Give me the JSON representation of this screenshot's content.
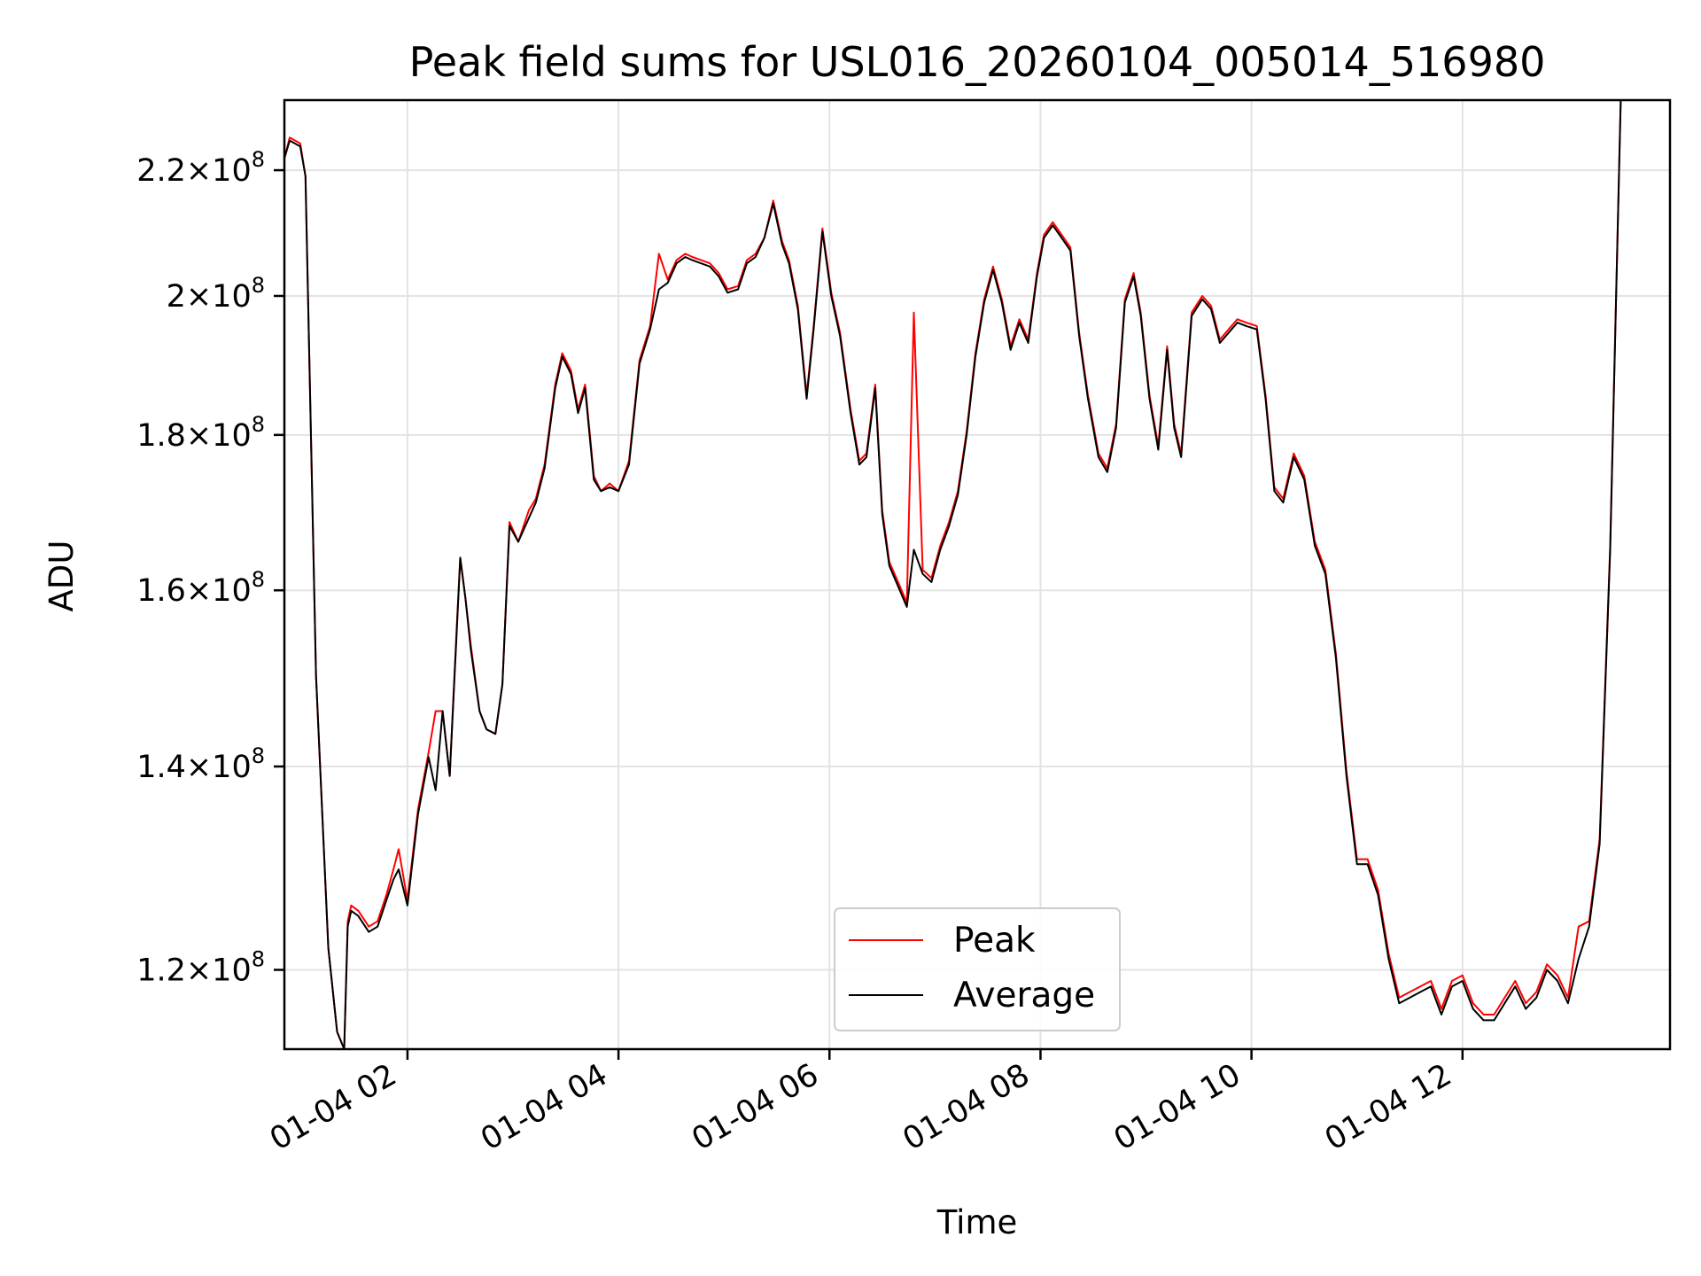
{
  "chart_data": {
    "type": "line",
    "title": "Peak field sums for USL016_20260104_005014_516980",
    "xlabel": "Time",
    "ylabel": "ADU",
    "y_scale": "log",
    "ylim": [
      113000000,
      232000000
    ],
    "xlim": [
      "2026-01-04 00:50",
      "2026-01-04 13:58"
    ],
    "x_ticks": [
      {
        "label": "01-04 02",
        "time": "2026-01-04 02:00"
      },
      {
        "label": "01-04 04",
        "time": "2026-01-04 04:00"
      },
      {
        "label": "01-04 06",
        "time": "2026-01-04 06:00"
      },
      {
        "label": "01-04 08",
        "time": "2026-01-04 08:00"
      },
      {
        "label": "01-04 10",
        "time": "2026-01-04 10:00"
      },
      {
        "label": "01-04 12",
        "time": "2026-01-04 12:00"
      }
    ],
    "y_ticks": [
      {
        "mantissa": "1.2",
        "exp": "8",
        "value": 120000000
      },
      {
        "mantissa": "1.4",
        "exp": "8",
        "value": 140000000
      },
      {
        "mantissa": "1.6",
        "exp": "8",
        "value": 160000000
      },
      {
        "mantissa": "1.8",
        "exp": "8",
        "value": 180000000
      },
      {
        "mantissa": "2",
        "exp": "8",
        "value": 200000000
      },
      {
        "mantissa": "2.2",
        "exp": "8",
        "value": 220000000
      }
    ],
    "times_sep": " | ",
    "x": [
      "2026-01-04 00:50",
      "2026-01-04 00:53",
      "2026-01-04 00:59",
      "2026-01-04 01:02",
      "2026-01-04 01:08",
      "2026-01-04 01:15",
      "2026-01-04 01:20",
      "2026-01-04 01:24",
      "2026-01-04 01:26",
      "2026-01-04 01:28",
      "2026-01-04 01:32",
      "2026-01-04 01:38",
      "2026-01-04 01:43",
      "2026-01-04 01:48",
      "2026-01-04 01:52",
      "2026-01-04 01:55",
      "2026-01-04 02:00",
      "2026-01-04 02:06",
      "2026-01-04 02:12",
      "2026-01-04 02:16",
      "2026-01-04 02:20",
      "2026-01-04 02:24",
      "2026-01-04 02:28",
      "2026-01-04 02:30",
      "2026-01-04 02:33",
      "2026-01-04 02:36",
      "2026-01-04 02:41",
      "2026-01-04 02:45",
      "2026-01-04 02:50",
      "2026-01-04 02:54",
      "2026-01-04 02:58",
      "2026-01-04 03:03",
      "2026-01-04 03:09",
      "2026-01-04 03:13",
      "2026-01-04 03:18",
      "2026-01-04 03:24",
      "2026-01-04 03:28",
      "2026-01-04 03:33",
      "2026-01-04 03:37",
      "2026-01-04 03:41",
      "2026-01-04 03:46",
      "2026-01-04 03:50",
      "2026-01-04 03:55",
      "2026-01-04 04:00",
      "2026-01-04 04:06",
      "2026-01-04 04:12",
      "2026-01-04 04:18",
      "2026-01-04 04:23",
      "2026-01-04 04:28",
      "2026-01-04 04:33",
      "2026-01-04 04:38",
      "2026-01-04 04:42",
      "2026-01-04 04:47",
      "2026-01-04 04:52",
      "2026-01-04 04:57",
      "2026-01-04 05:02",
      "2026-01-04 05:08",
      "2026-01-04 05:13",
      "2026-01-04 05:18",
      "2026-01-04 05:23",
      "2026-01-04 05:28",
      "2026-01-04 05:33",
      "2026-01-04 05:37",
      "2026-01-04 05:42",
      "2026-01-04 05:47",
      "2026-01-04 05:51",
      "2026-01-04 05:56",
      "2026-01-04 06:01",
      "2026-01-04 06:06",
      "2026-01-04 06:12",
      "2026-01-04 06:17",
      "2026-01-04 06:21",
      "2026-01-04 06:26",
      "2026-01-04 06:30",
      "2026-01-04 06:34",
      "2026-01-04 06:39",
      "2026-01-04 06:44",
      "2026-01-04 06:48",
      "2026-01-04 06:53",
      "2026-01-04 06:58",
      "2026-01-04 07:03",
      "2026-01-04 07:08",
      "2026-01-04 07:13",
      "2026-01-04 07:18",
      "2026-01-04 07:23",
      "2026-01-04 07:28",
      "2026-01-04 07:33",
      "2026-01-04 07:38",
      "2026-01-04 07:43",
      "2026-01-04 07:48",
      "2026-01-04 07:53",
      "2026-01-04 07:58",
      "2026-01-04 08:02",
      "2026-01-04 08:07",
      "2026-01-04 08:12",
      "2026-01-04 08:17",
      "2026-01-04 08:22",
      "2026-01-04 08:27",
      "2026-01-04 08:33",
      "2026-01-04 08:38",
      "2026-01-04 08:43",
      "2026-01-04 08:48",
      "2026-01-04 08:53",
      "2026-01-04 08:57",
      "2026-01-04 09:02",
      "2026-01-04 09:07",
      "2026-01-04 09:12",
      "2026-01-04 09:16",
      "2026-01-04 09:20",
      "2026-01-04 09:26",
      "2026-01-04 09:32",
      "2026-01-04 09:37",
      "2026-01-04 09:42",
      "2026-01-04 09:47",
      "2026-01-04 09:52",
      "2026-01-04 09:57",
      "2026-01-04 10:03",
      "2026-01-04 10:08",
      "2026-01-04 10:13",
      "2026-01-04 10:18",
      "2026-01-04 10:24",
      "2026-01-04 10:30",
      "2026-01-04 10:36",
      "2026-01-04 10:42",
      "2026-01-04 10:48",
      "2026-01-04 10:54",
      "2026-01-04 11:00",
      "2026-01-04 11:06",
      "2026-01-04 11:12",
      "2026-01-04 11:18",
      "2026-01-04 11:24",
      "2026-01-04 11:30",
      "2026-01-04 11:36",
      "2026-01-04 11:42",
      "2026-01-04 11:48",
      "2026-01-04 11:54",
      "2026-01-04 12:00",
      "2026-01-04 12:06",
      "2026-01-04 12:12",
      "2026-01-04 12:18",
      "2026-01-04 12:24",
      "2026-01-04 12:30",
      "2026-01-04 12:36",
      "2026-01-04 12:42",
      "2026-01-04 12:48",
      "2026-01-04 12:54",
      "2026-01-04 13:00",
      "2026-01-04 13:06",
      "2026-01-04 13:12",
      "2026-01-04 13:18",
      "2026-01-04 13:24",
      "2026-01-04 13:30",
      "2026-01-04 13:36",
      "2026-01-04 13:42",
      "2026-01-04 13:48",
      "2026-01-04 13:54",
      "2026-01-04 13:58"
    ],
    "average": [
      222000000,
      225000000,
      224000000,
      219000000,
      150000000,
      122000000,
      114500000,
      113000000,
      124000000,
      125500000,
      125000000,
      123500000,
      124000000,
      126500000,
      128500000,
      129500000,
      126000000,
      135000000,
      141000000,
      137500000,
      146000000,
      139000000,
      155000000,
      164000000,
      159000000,
      153000000,
      146000000,
      144000000,
      143500000,
      149000000,
      168000000,
      166000000,
      169000000,
      171000000,
      175500000,
      186500000,
      191000000,
      188500000,
      183000000,
      186500000,
      174000000,
      172500000,
      173000000,
      172500000,
      176000000,
      190000000,
      195000000,
      201000000,
      202000000,
      205000000,
      206000000,
      205500000,
      205000000,
      204500000,
      203000000,
      200500000,
      201000000,
      205000000,
      206000000,
      209000000,
      214500000,
      208000000,
      205000000,
      198000000,
      185000000,
      195000000,
      210000000,
      200000000,
      194000000,
      183000000,
      176000000,
      177000000,
      186500000,
      169500000,
      163000000,
      160500000,
      158000000,
      165000000,
      162000000,
      161000000,
      165000000,
      168000000,
      172000000,
      180000000,
      191000000,
      199000000,
      204000000,
      199000000,
      192000000,
      196000000,
      193000000,
      203000000,
      209000000,
      211000000,
      209000000,
      207000000,
      194000000,
      185000000,
      177000000,
      175000000,
      181000000,
      199000000,
      203000000,
      197000000,
      185000000,
      178000000,
      192000000,
      181000000,
      177000000,
      197000000,
      199500000,
      198000000,
      193000000,
      194500000,
      196000000,
      195500000,
      195000000,
      185000000,
      172500000,
      171000000,
      177000000,
      174000000,
      165500000,
      162000000,
      152000000,
      139000000,
      130000000,
      130000000,
      127000000,
      121000000,
      117000000,
      117500000,
      118000000,
      118500000,
      116000000,
      118500000,
      119000000,
      116500000,
      115500000,
      115500000,
      117000000,
      118500000,
      116500000,
      117500000,
      120000000,
      119000000,
      117000000,
      121000000,
      124000000,
      132000000,
      165000000,
      232000000
    ],
    "peak": [
      222000000,
      225500000,
      224500000,
      219000000,
      150000000,
      122000000,
      114500000,
      113000000,
      124500000,
      126000000,
      125500000,
      124000000,
      124500000,
      127000000,
      129500000,
      131500000,
      126500000,
      135500000,
      141500000,
      146000000,
      146000000,
      139000000,
      155500000,
      164000000,
      159000000,
      153500000,
      146000000,
      144000000,
      143500000,
      149000000,
      168500000,
      166000000,
      170000000,
      171500000,
      176000000,
      187000000,
      191500000,
      189000000,
      183500000,
      187000000,
      174500000,
      172500000,
      173500000,
      172500000,
      176500000,
      190500000,
      195500000,
      206500000,
      202500000,
      205500000,
      206500000,
      206000000,
      205500000,
      205000000,
      203500000,
      201000000,
      201500000,
      205500000,
      206500000,
      209000000,
      215000000,
      208500000,
      205500000,
      198500000,
      185500000,
      195500000,
      210500000,
      200500000,
      194500000,
      183500000,
      176500000,
      177500000,
      187000000,
      170000000,
      163500000,
      161000000,
      158500000,
      197500000,
      162500000,
      161500000,
      165500000,
      168500000,
      172500000,
      180500000,
      191500000,
      199500000,
      204500000,
      199500000,
      192500000,
      196500000,
      193500000,
      203500000,
      209500000,
      211500000,
      209500000,
      207500000,
      194500000,
      185500000,
      177500000,
      175500000,
      181500000,
      199500000,
      203500000,
      197500000,
      185500000,
      178500000,
      192500000,
      181500000,
      177500000,
      197500000,
      200000000,
      198500000,
      193500000,
      195000000,
      196500000,
      196000000,
      195500000,
      185500000,
      173000000,
      171500000,
      177500000,
      174500000,
      166000000,
      162500000,
      152500000,
      139500000,
      130500000,
      130500000,
      127500000,
      121500000,
      117500000,
      118000000,
      118500000,
      119000000,
      116500000,
      119000000,
      119500000,
      117000000,
      116000000,
      116000000,
      117500000,
      119000000,
      117000000,
      118000000,
      120500000,
      119500000,
      117500000,
      124000000,
      124500000,
      132500000,
      165500000,
      232000000
    ],
    "series": [
      {
        "name": "Peak",
        "color": "#ff0000"
      },
      {
        "name": "Average",
        "color": "#000000"
      }
    ],
    "legend": {
      "position": "lower-center"
    },
    "grid": true
  }
}
